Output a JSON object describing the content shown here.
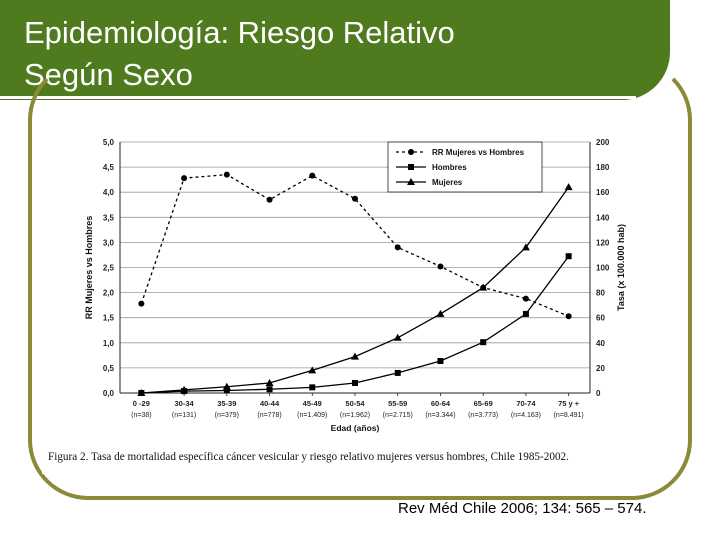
{
  "slide": {
    "title": "Epidemiología: Riesgo Relativo\nSegún Sexo",
    "citation": "Rev Méd Chile 2006; 134: 565 – 574."
  },
  "colors": {
    "band": "#4f7a1e",
    "frame": "#8a8a3a"
  },
  "chart_data": {
    "type": "line",
    "caption": "Figura 2. Tasa de mortalidad específica cáncer vesicular y riesgo relativo mujeres versus hombres, Chile 1985-2002.",
    "xlabel": "Edad (años)",
    "ylabel_left": "RR Mujeres vs Hombres",
    "ylabel_right": "Tasa (x 100.000 hab)",
    "ylim_left": [
      0,
      5
    ],
    "ylim_right": [
      0,
      200
    ],
    "yticks_left": [
      "0,0",
      "0,5",
      "1,0",
      "1,5",
      "2,0",
      "2,5",
      "3,0",
      "3,5",
      "4,0",
      "4,5",
      "5,0"
    ],
    "yticks_right": [
      "0",
      "20",
      "40",
      "60",
      "80",
      "100",
      "120",
      "140",
      "160",
      "180",
      "200"
    ],
    "grid": true,
    "legend_position": "top-right",
    "categories": [
      "0 -29",
      "30-34",
      "35-39",
      "40-44",
      "45-49",
      "50-54",
      "55-59",
      "60-64",
      "65-69",
      "70-74",
      "75 y +"
    ],
    "category_n": [
      "(n=38)",
      "(n=131)",
      "(n=379)",
      "(n=778)",
      "(n=1.409)",
      "(n=1.962)",
      "(n=2.715)",
      "(n=3.344)",
      "(n=3.773)",
      "(n=4.163)",
      "(n=8.491)"
    ],
    "series": [
      {
        "name": "RR Mujeres vs Hombres",
        "axis": "left",
        "marker": "circle",
        "dashed": true,
        "values": [
          1.78,
          4.28,
          4.35,
          3.85,
          4.33,
          3.87,
          2.9,
          2.52,
          2.1,
          1.88,
          1.53
        ]
      },
      {
        "name": "Hombres",
        "axis": "right",
        "marker": "square",
        "dashed": false,
        "values": [
          0,
          1.5,
          2,
          3,
          4.5,
          8,
          16,
          25.5,
          40.5,
          63,
          109
        ]
      },
      {
        "name": "Mujeres",
        "axis": "right",
        "marker": "triangle",
        "dashed": false,
        "values": [
          0,
          2.5,
          5,
          8,
          18,
          29,
          44,
          63,
          84,
          116,
          164
        ]
      }
    ]
  }
}
